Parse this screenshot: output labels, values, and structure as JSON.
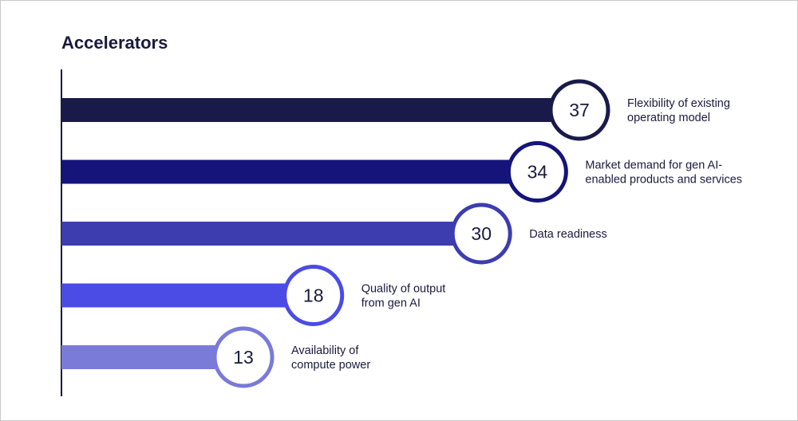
{
  "chart_data": {
    "type": "bar",
    "orientation": "horizontal",
    "title": "Accelerators",
    "categories": [
      "Flexibility of existing operating model",
      "Market demand for gen AI-enabled products and services",
      "Data readiness",
      "Quality of output from gen AI",
      "Availability of compute power"
    ],
    "label_lines": [
      [
        "Flexibility of existing",
        "operating model"
      ],
      [
        "Market demand for gen AI-",
        "enabled products and services"
      ],
      [
        "Data readiness"
      ],
      [
        "Quality of output",
        "from gen AI"
      ],
      [
        "Availability of",
        "compute power"
      ]
    ],
    "values": [
      37,
      34,
      30,
      18,
      13
    ],
    "colors": [
      "#1a1a4a",
      "#14147a",
      "#3d3db0",
      "#4b4be6",
      "#7a7ad9"
    ],
    "xlim": [
      0,
      37
    ],
    "grid": false,
    "legend": "none"
  }
}
